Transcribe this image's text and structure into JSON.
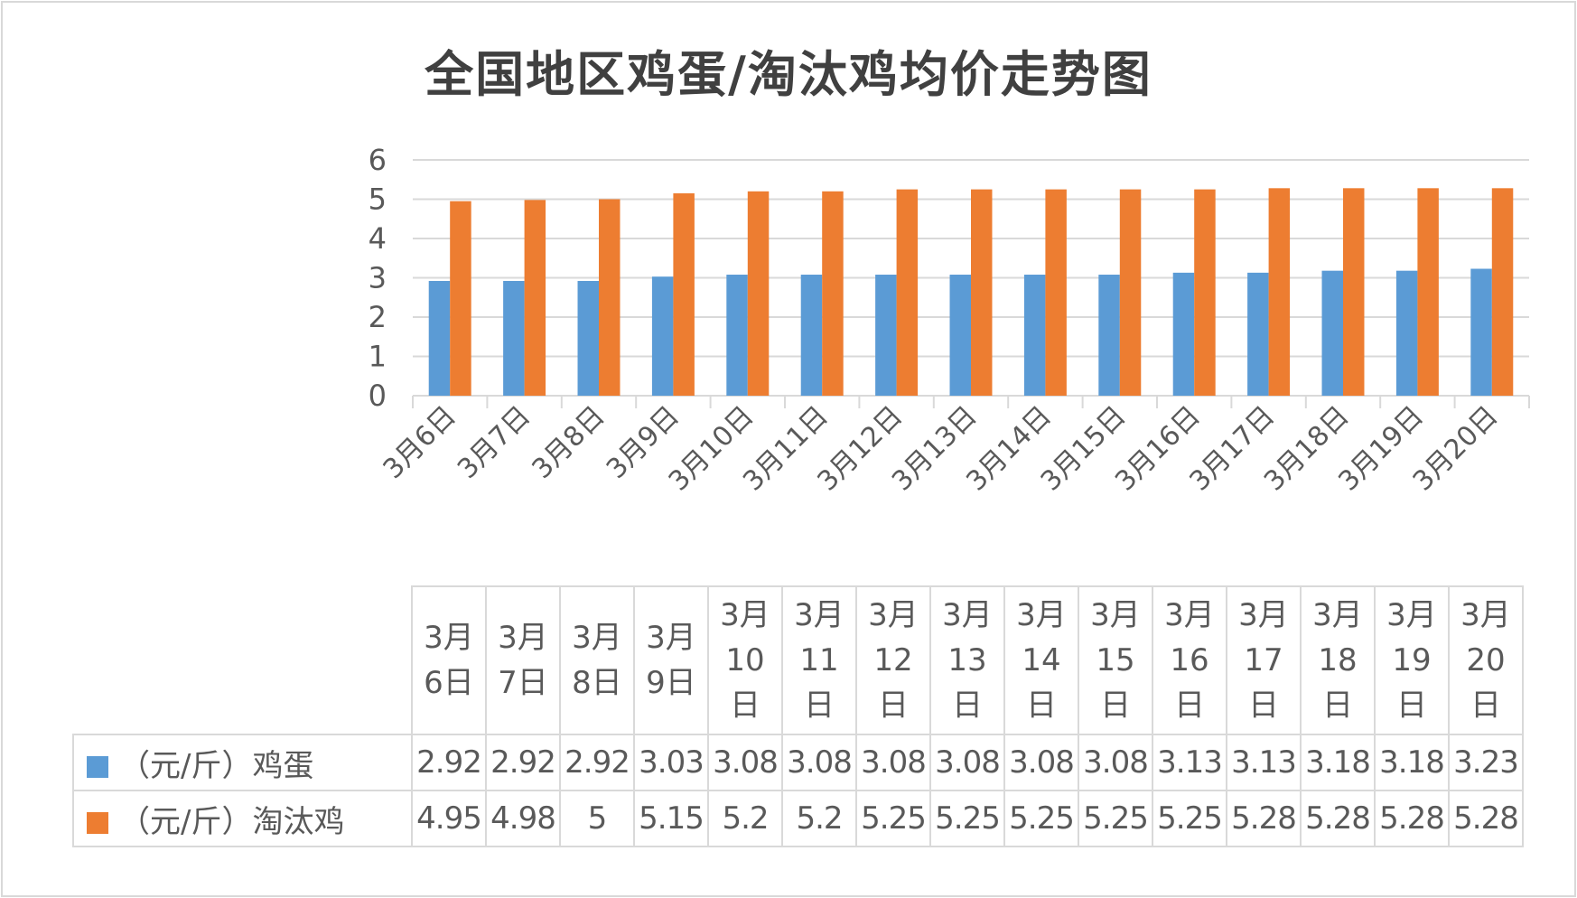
{
  "chart_data": {
    "type": "bar",
    "title": "全国地区鸡蛋/淘汰鸡均价走势图",
    "categories": [
      "3月6日",
      "3月7日",
      "3月8日",
      "3月9日",
      "3月10日",
      "3月11日",
      "3月12日",
      "3月13日",
      "3月14日",
      "3月15日",
      "3月16日",
      "3月17日",
      "3月18日",
      "3月19日",
      "3月20日"
    ],
    "series": [
      {
        "name": "（元/斤）鸡蛋",
        "color": "#5B9BD5",
        "values": [
          2.92,
          2.92,
          2.92,
          3.03,
          3.08,
          3.08,
          3.08,
          3.08,
          3.08,
          3.08,
          3.13,
          3.13,
          3.18,
          3.18,
          3.23
        ]
      },
      {
        "name": "（元/斤）淘汰鸡",
        "color": "#ED7D31",
        "values": [
          4.95,
          4.98,
          5,
          5.15,
          5.2,
          5.2,
          5.25,
          5.25,
          5.25,
          5.25,
          5.25,
          5.28,
          5.28,
          5.28,
          5.28
        ]
      }
    ],
    "ylim": [
      0,
      6
    ],
    "yticks": [
      0,
      1,
      2,
      3,
      4,
      5,
      6
    ],
    "grid": true,
    "data_table": true,
    "legend": "data-table"
  }
}
